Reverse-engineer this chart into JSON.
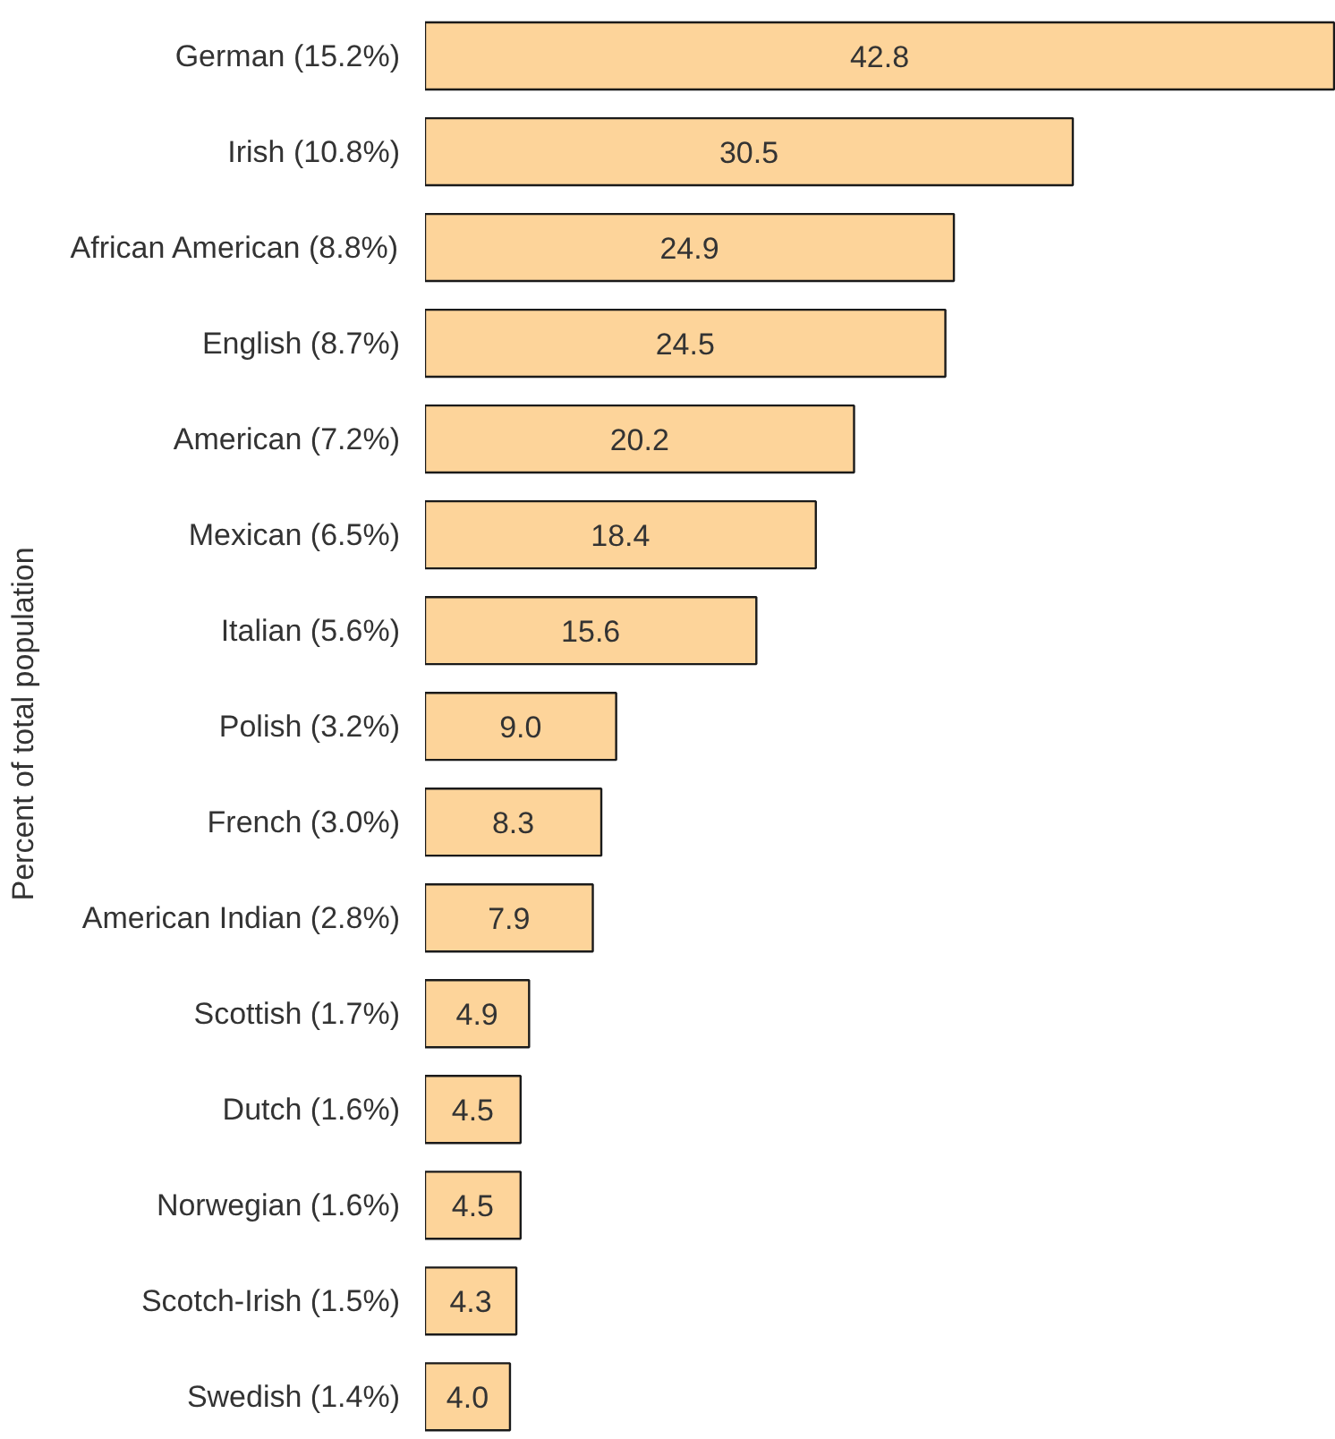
{
  "chart_data": {
    "type": "bar",
    "orientation": "horizontal",
    "ylabel": "Percent of total population",
    "categories": [
      "German (15.2%)",
      "Irish (10.8%)",
      "African American (8.8%)",
      "English (8.7%)",
      "American (7.2%)",
      "Mexican (6.5%)",
      "Italian (5.6%)",
      "Polish (3.2%)",
      "French (3.0%)",
      "American Indian (2.8%)",
      "Scottish (1.7%)",
      "Dutch (1.6%)",
      "Norwegian (1.6%)",
      "Scotch-Irish (1.5%)",
      "Swedish (1.4%)"
    ],
    "values": [
      42.8,
      30.5,
      24.9,
      24.5,
      20.2,
      18.4,
      15.6,
      9.0,
      8.3,
      7.9,
      4.9,
      4.5,
      4.5,
      4.3,
      4.0
    ],
    "value_labels": [
      "42.8",
      "30.5",
      "24.9",
      "24.5",
      "20.2",
      "18.4",
      "15.6",
      "9.0",
      "8.3",
      "7.9",
      "4.9",
      "4.5",
      "4.5",
      "4.3",
      "4.0"
    ],
    "color": "#fdd49a",
    "grid": false
  }
}
